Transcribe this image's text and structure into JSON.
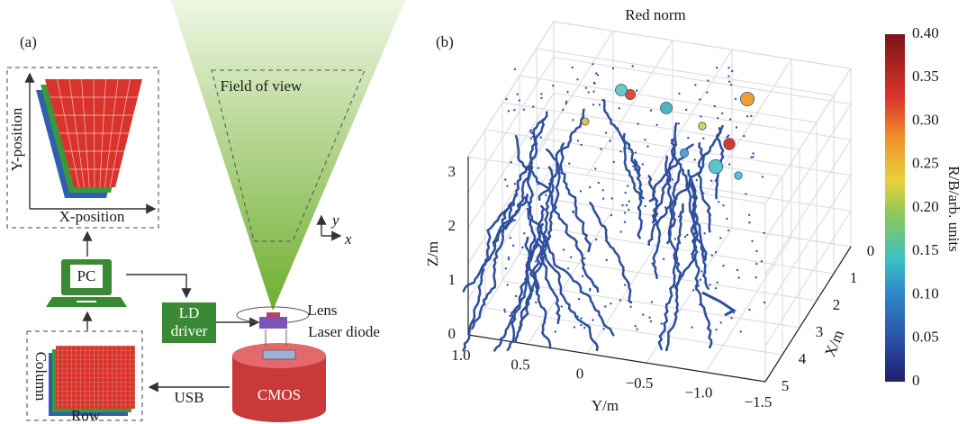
{
  "panel_a": {
    "label": "(a)",
    "field_of_view": "Field of view",
    "display": {
      "y_axis": "Y-position",
      "x_axis": "X-position"
    },
    "pc": "PC",
    "ld_driver": [
      "LD",
      "driver"
    ],
    "lens": "Lens",
    "laser_diode": "Laser diode",
    "cmos": "CMOS",
    "usb": "USB",
    "sensor": {
      "y_axis": "Column",
      "x_axis": "Row"
    },
    "axes": {
      "y": "y",
      "x": "x"
    }
  },
  "panel_b": {
    "label": "(b)",
    "title": "Red norm",
    "z_axis": {
      "label": "Z/m",
      "ticks": [
        "0",
        "1",
        "2",
        "3"
      ]
    },
    "y_axis": {
      "label": "Y/m",
      "ticks": [
        "1.0",
        "0.5",
        "0",
        "−0.5",
        "−1.0",
        "−1.5"
      ]
    },
    "x_axis": {
      "label": "X/m",
      "ticks": [
        "0",
        "1",
        "2",
        "3",
        "4",
        "5"
      ]
    },
    "colorbar": {
      "label": "R/B/arb. units",
      "ticks": [
        "0",
        "0.05",
        "0.10",
        "0.15",
        "0.20",
        "0.25",
        "0.30",
        "0.35",
        "0.40"
      ]
    }
  }
}
